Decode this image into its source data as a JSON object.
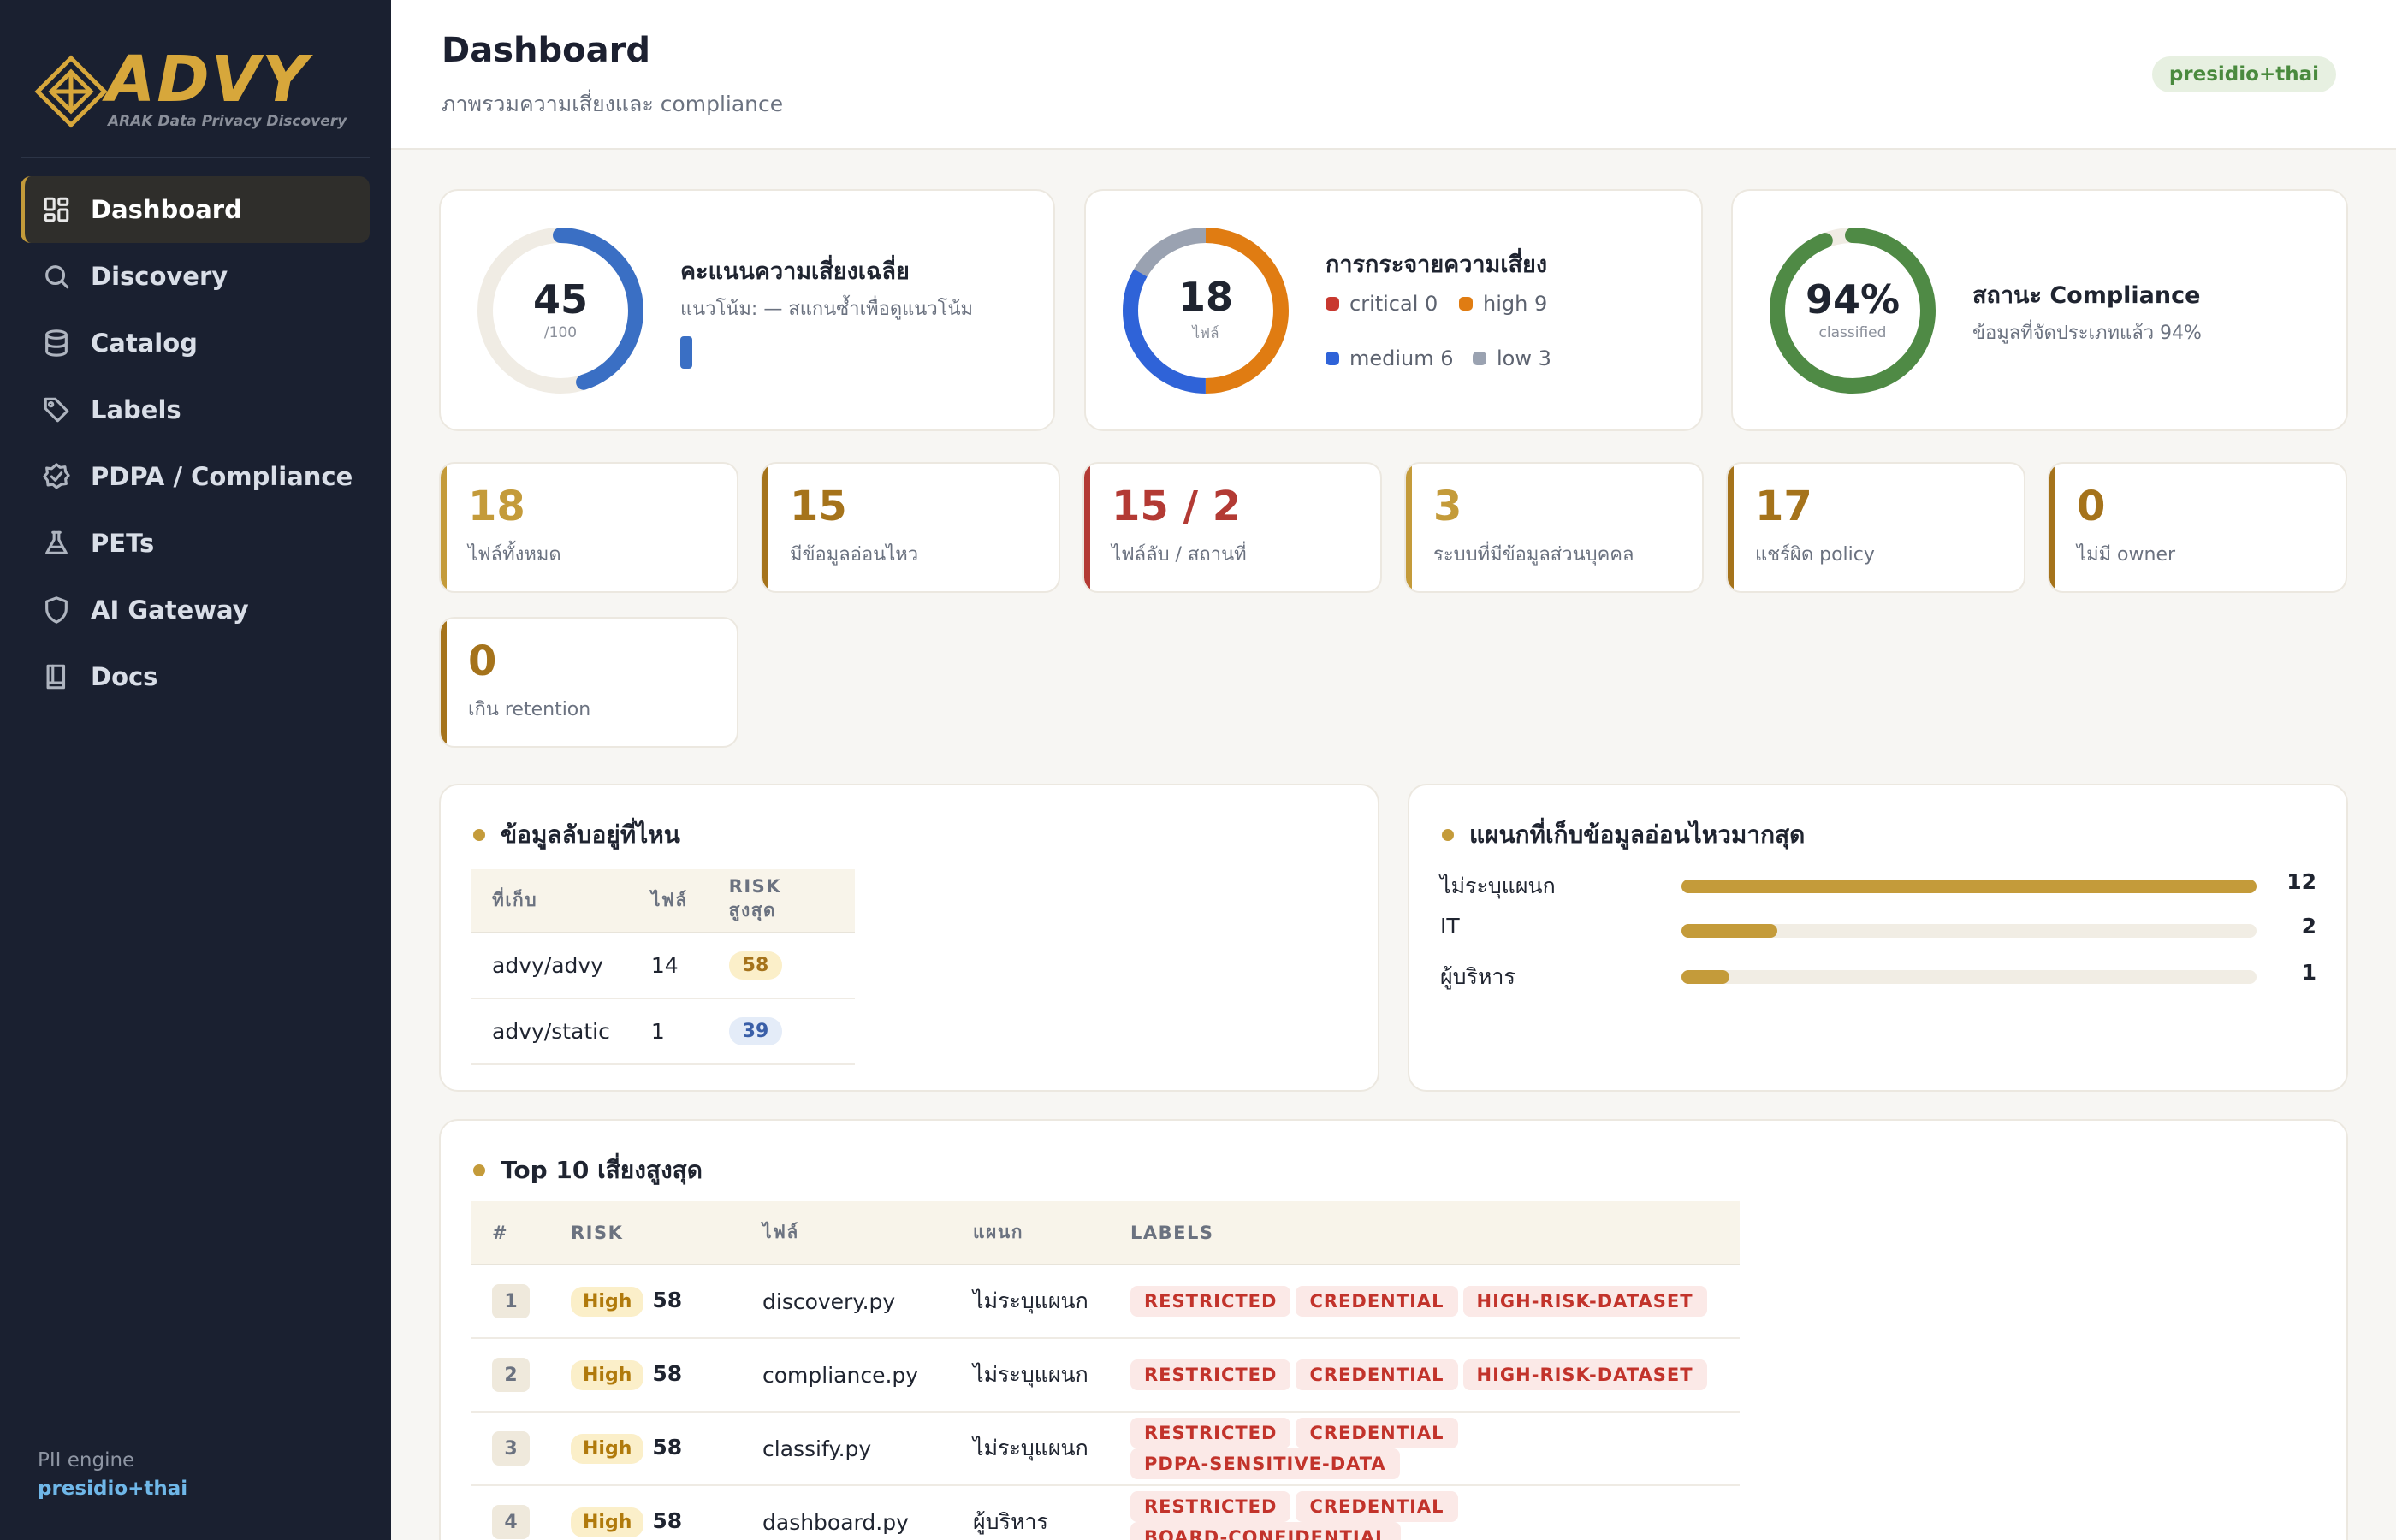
{
  "brand": {
    "name": "ADVY",
    "tagline": "ARAK Data Privacy Discovery"
  },
  "nav": [
    {
      "label": "Dashboard",
      "icon": "dashboard-icon",
      "active": true
    },
    {
      "label": "Discovery",
      "icon": "search-icon"
    },
    {
      "label": "Catalog",
      "icon": "database-icon"
    },
    {
      "label": "Labels",
      "icon": "tag-icon"
    },
    {
      "label": "PDPA / Compliance",
      "icon": "shield-check-icon"
    },
    {
      "label": "PETs",
      "icon": "flask-icon"
    },
    {
      "label": "AI Gateway",
      "icon": "shield-icon"
    },
    {
      "label": "Docs",
      "icon": "book-icon"
    }
  ],
  "sidebar_footer": {
    "label": "PII engine",
    "value": "presidio+thai"
  },
  "header": {
    "title": "Dashboard",
    "subtitle": "ภาพรวมความเสี่ยงและ compliance",
    "engine_badge": "presidio+thai"
  },
  "risk_score": {
    "value": "45",
    "unit": "/100",
    "fraction": 0.45,
    "title": "คะแนนความเสี่ยงเฉลี่ย",
    "trend": "แนวโน้ม: — สแกนซ้ำเพื่อดูแนวโน้ม",
    "color": "#3a6fc4"
  },
  "risk_distribution": {
    "total": "18",
    "unit": "ไฟล์",
    "title": "การกระจายความเสี่ยง",
    "segments": [
      {
        "label": "critical 0",
        "count": 0,
        "color": "#c8382f"
      },
      {
        "label": "high 9",
        "count": 9,
        "color": "#e07c12"
      },
      {
        "label": "medium 6",
        "count": 6,
        "color": "#2f63d8"
      },
      {
        "label": "low 3",
        "count": 3,
        "color": "#9aa2b1"
      }
    ]
  },
  "compliance": {
    "value": "94%",
    "unit": "classified",
    "fraction": 0.94,
    "title": "สถานะ Compliance",
    "text": "ข้อมูลที่จัดประเภทแล้ว 94%",
    "color": "#4f8a45"
  },
  "kpis": [
    {
      "value": "18",
      "label": "ไฟล์ทั้งหมด",
      "color": "#c49b3a"
    },
    {
      "value": "15",
      "label": "มีข้อมูลอ่อนไหว",
      "color": "#a5731b"
    },
    {
      "value": "15 / 2",
      "label": "ไฟล์ลับ / สถานที่",
      "color": "#b33a34"
    },
    {
      "value": "3",
      "label": "ระบบที่มีข้อมูลส่วนบุคคล",
      "color": "#c49b3a"
    },
    {
      "value": "17",
      "label": "แชร์ผิด policy",
      "color": "#a5731b"
    },
    {
      "value": "0",
      "label": "ไม่มี owner",
      "color": "#a5731b"
    },
    {
      "value": "0",
      "label": "เกิน retention",
      "color": "#a5731b"
    }
  ],
  "where_secrets": {
    "title": "ข้อมูลลับอยู่ที่ไหน",
    "columns": [
      "ที่เก็บ",
      "ไฟล์",
      "RISK สูงสุด"
    ],
    "rows": [
      {
        "store": "advy/advy",
        "files": "14",
        "risk": "58",
        "pill_bg": "#fbefc9",
        "pill_fg": "#a5731b"
      },
      {
        "store": "advy/static",
        "files": "1",
        "risk": "39",
        "pill_bg": "#e4ecf8",
        "pill_fg": "#3a5fa8"
      }
    ]
  },
  "departments": {
    "title": "แผนกที่เก็บข้อมูลอ่อนไหวมากสุด",
    "max": 12,
    "rows": [
      {
        "name": "ไม่ระบุแผนก",
        "count": 12
      },
      {
        "name": "IT",
        "count": 2
      },
      {
        "name": "ผู้บริหาร",
        "count": 1
      }
    ]
  },
  "top10": {
    "title": "Top 10 เสี่ยงสูงสุด",
    "columns": [
      "#",
      "RISK",
      "ไฟล์",
      "แผนก",
      "LABELS"
    ],
    "rows": [
      {
        "rank": "1",
        "severity": "High",
        "score": "58",
        "file": "discovery.py",
        "dept": "ไม่ระบุแผนก",
        "labels": [
          "RESTRICTED",
          "CREDENTIAL",
          "HIGH-RISK-DATASET"
        ]
      },
      {
        "rank": "2",
        "severity": "High",
        "score": "58",
        "file": "compliance.py",
        "dept": "ไม่ระบุแผนก",
        "labels": [
          "RESTRICTED",
          "CREDENTIAL",
          "HIGH-RISK-DATASET"
        ]
      },
      {
        "rank": "3",
        "severity": "High",
        "score": "58",
        "file": "classify.py",
        "dept": "ไม่ระบุแผนก",
        "labels": [
          "RESTRICTED",
          "CREDENTIAL",
          "PDPA-SENSITIVE-DATA"
        ]
      },
      {
        "rank": "4",
        "severity": "High",
        "score": "58",
        "file": "dashboard.py",
        "dept": "ผู้บริหาร",
        "labels": [
          "RESTRICTED",
          "CREDENTIAL",
          "BOARD-CONFIDENTIAL"
        ]
      }
    ]
  }
}
